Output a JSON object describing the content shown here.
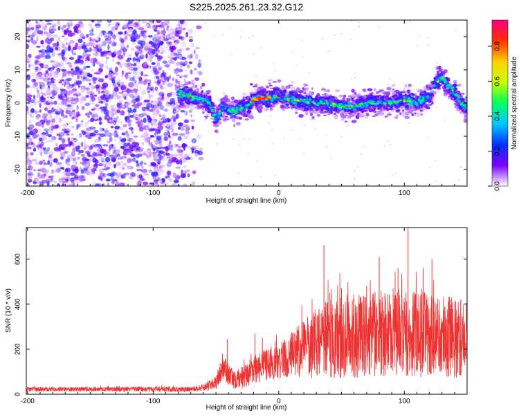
{
  "chart_data": [
    {
      "type": "heatmap",
      "title": "S225.2025.261.23.32.G12",
      "xlabel": "Height of straight line (km)",
      "ylabel": "Frequency (Hz)",
      "xlim": [
        -201,
        150
      ],
      "ylim": [
        -25,
        25
      ],
      "xticks": [
        -200,
        -100,
        0,
        100
      ],
      "yticks": [
        20,
        10,
        0,
        -10,
        -20
      ],
      "colorbar": {
        "label": "Normalized spectral amplitude",
        "range": [
          0,
          0.95
        ],
        "ticks": [
          "0.0",
          "0.2",
          "0.4",
          "0.6",
          "0.8"
        ],
        "colors": [
          "#ffffff",
          "#7a00ff",
          "#0033ff",
          "#00c8ff",
          "#00ff60",
          "#c8ff00",
          "#ffd000",
          "#ff3000",
          "#ff0080"
        ]
      },
      "ridge_frequency": {
        "x": [
          -80,
          -70,
          -60,
          -55,
          -50,
          -45,
          -40,
          -35,
          -30,
          -25,
          -20,
          -15,
          -10,
          -5,
          0,
          5,
          10,
          20,
          30,
          40,
          50,
          60,
          70,
          80,
          90,
          100,
          110,
          120,
          125,
          130,
          135,
          140,
          145,
          150
        ],
        "y": [
          3,
          2,
          1,
          0,
          -5,
          -1,
          -2,
          -2.5,
          -1.5,
          -1,
          1,
          1.5,
          1.5,
          1.5,
          2,
          1.5,
          1,
          0.5,
          0,
          0,
          -1,
          -1,
          0,
          0,
          0,
          1,
          0,
          2,
          6,
          8,
          5,
          3,
          0,
          -1
        ]
      },
      "noise_region_x": [
        -201,
        -60
      ]
    },
    {
      "type": "line",
      "title": "",
      "xlabel": "Height of straight line (km)",
      "ylabel": "SNR (10 * v/v)",
      "xlim": [
        -201,
        150
      ],
      "ylim": [
        0,
        740
      ],
      "xticks": [
        -200,
        -100,
        0,
        100
      ],
      "yticks": [
        0,
        200,
        400,
        600
      ],
      "color": "#ee3333",
      "envelope": {
        "x": [
          -201,
          -150,
          -100,
          -70,
          -60,
          -50,
          -45,
          -40,
          -35,
          -30,
          -20,
          -10,
          0,
          10,
          20,
          30,
          40,
          60,
          80,
          100,
          120,
          140,
          150
        ],
        "mean": [
          22,
          22,
          22,
          22,
          30,
          50,
          120,
          90,
          60,
          70,
          110,
          130,
          150,
          175,
          200,
          230,
          250,
          260,
          270,
          270,
          265,
          250,
          250
        ],
        "spread": [
          10,
          10,
          12,
          12,
          15,
          30,
          60,
          50,
          40,
          50,
          60,
          70,
          80,
          100,
          130,
          160,
          180,
          190,
          190,
          200,
          190,
          180,
          170
        ]
      },
      "peaks": [
        {
          "x": -41,
          "y": 245
        },
        {
          "x": -19,
          "y": 270
        },
        {
          "x": -13,
          "y": 250
        },
        {
          "x": 26,
          "y": 330
        },
        {
          "x": 36,
          "y": 660
        },
        {
          "x": 50,
          "y": 470
        },
        {
          "x": 70,
          "y": 480
        },
        {
          "x": 80,
          "y": 610
        },
        {
          "x": 95,
          "y": 560
        },
        {
          "x": 103,
          "y": 740
        },
        {
          "x": 115,
          "y": 560
        },
        {
          "x": 122,
          "y": 600
        },
        {
          "x": 145,
          "y": 420
        }
      ]
    }
  ]
}
